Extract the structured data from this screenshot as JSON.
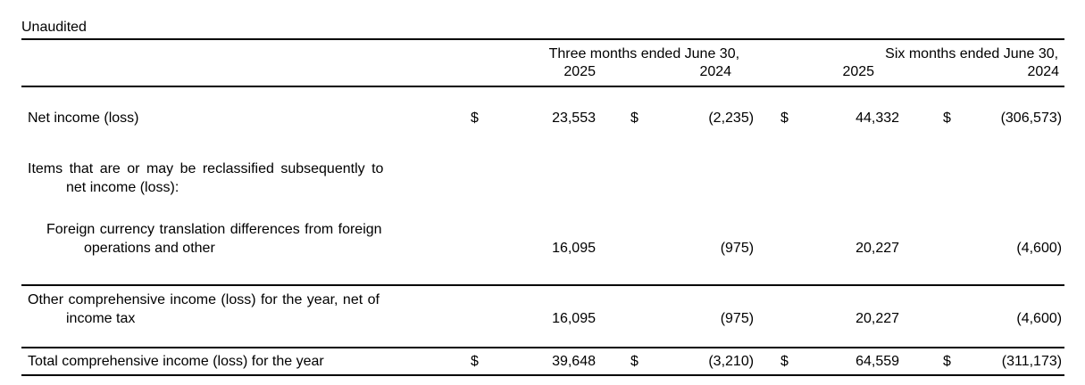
{
  "meta": {
    "unaudited_label": "Unaudited",
    "text_color": "#000000",
    "background_color": "#ffffff",
    "rule_color": "#000000"
  },
  "table": {
    "col_groups": [
      {
        "label": "Three months ended June 30,"
      },
      {
        "label": "Six months ended June 30,"
      }
    ],
    "year_headers": [
      "2025",
      "2024",
      "2025",
      "2024"
    ],
    "currency_symbol": "$",
    "rows": [
      {
        "id": "net-income",
        "label_lines": [
          "Net income (loss)",
          ""
        ],
        "currency": "$",
        "values": [
          "23,553",
          "(2,235)",
          "44,332",
          "(306,573)"
        ]
      },
      {
        "id": "items-reclassified",
        "label_lines": [
          "Items that are or may be reclassified subsequently to",
          "net income (loss):"
        ],
        "currency": "",
        "values": [
          "",
          "",
          "",
          ""
        ]
      },
      {
        "id": "foreign-currency-translation",
        "label_lines": [
          "Foreign currency translation differences from foreign",
          "operations and other"
        ],
        "currency": "",
        "values": [
          "16,095",
          "(975)",
          "20,227",
          "(4,600)"
        ]
      },
      {
        "id": "other-comprehensive-income",
        "label_lines": [
          "Other comprehensive income (loss) for the year, net of",
          "income tax"
        ],
        "currency": "",
        "values": [
          "16,095",
          "(975)",
          "20,227",
          "(4,600)"
        ]
      },
      {
        "id": "total-comprehensive-income",
        "label_lines": [
          "Total comprehensive income (loss) for the year",
          ""
        ],
        "currency": "$",
        "values": [
          "39,648",
          "(3,210)",
          "64,559",
          "(311,173)"
        ]
      }
    ]
  }
}
